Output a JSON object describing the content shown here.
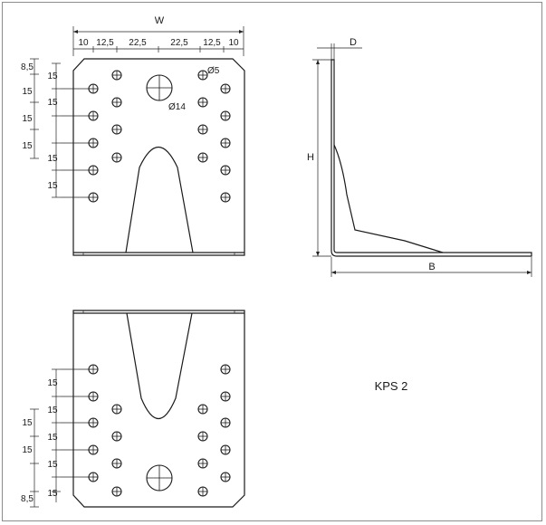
{
  "labels": {
    "width": "W",
    "height": "H",
    "depth": "D",
    "base": "B",
    "small_hole": "Ø5",
    "large_hole": "Ø14",
    "model": "KPS 2"
  },
  "top_dims": [
    "10",
    "12,5",
    "22,5",
    "22,5",
    "12,5",
    "10"
  ],
  "top_view_side_dims": [
    "8,5",
    "15",
    "15",
    "15",
    "15",
    "15",
    "15",
    "15"
  ],
  "bottom_view_side_dims": [
    "15",
    "15",
    "15",
    "15",
    "15",
    "15",
    "15",
    "8,5"
  ]
}
